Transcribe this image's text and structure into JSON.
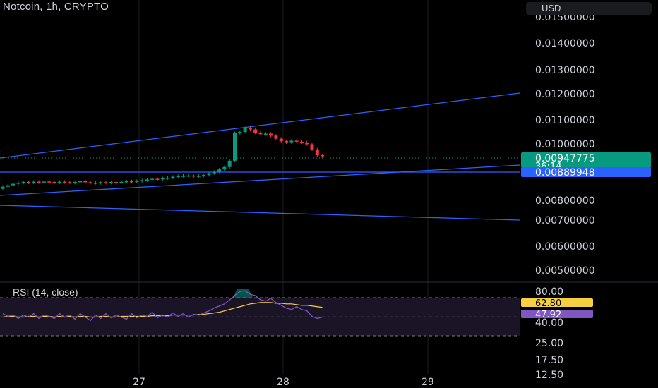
{
  "header": {
    "symbol_title": "Notcoin, 1h, CRYPTO",
    "currency_button": "USD"
  },
  "price_axis": {
    "ticks": [
      "0.01500000",
      "0.01400000",
      "0.01300000",
      "0.01200000",
      "0.01100000",
      "0.01000000",
      "0.00800000",
      "0.00700000",
      "0.00600000",
      "0.00500000"
    ],
    "last_price_label": "0.00947775",
    "countdown_label": "36:14",
    "horizontal_line_label": "0.00889948",
    "last_price_color": "#089981",
    "line_label_color": "#2962ff"
  },
  "rsi": {
    "title": "RSI (14, close)",
    "ticks": [
      "80.00",
      "40.00",
      "25.00",
      "17.50",
      "12.50"
    ],
    "rsi_value_label": "47.92",
    "ma_value_label": "62.80",
    "rsi_color": "#7e57c2",
    "ma_color": "#f5d142"
  },
  "time_axis": {
    "labels": [
      "27",
      "28",
      "29"
    ]
  },
  "colors": {
    "up": "#089981",
    "down": "#f23645",
    "trendline": "#2962ff",
    "background": "#000000"
  }
}
